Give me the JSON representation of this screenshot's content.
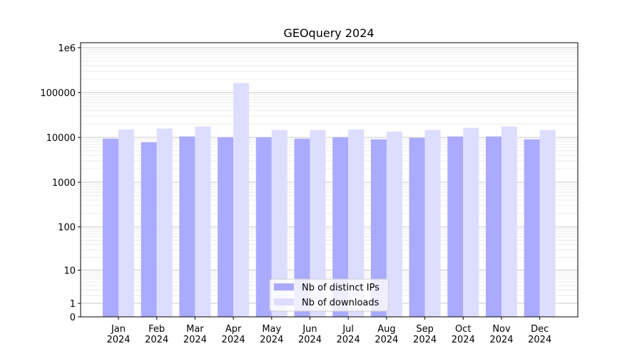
{
  "chart_data": {
    "type": "bar",
    "title": "GEOquery 2024",
    "xlabel": "",
    "ylabel": "",
    "yscale": "log10(1+y)",
    "ylim": [
      0,
      1200000
    ],
    "yticks": [
      0,
      1,
      10,
      100,
      1000,
      10000,
      100000,
      1000000
    ],
    "ytick_labels": [
      "0",
      "1",
      "10",
      "100",
      "1000",
      "10000",
      "100000",
      "1e6"
    ],
    "categories": [
      "Jan\n2024",
      "Feb\n2024",
      "Mar\n2024",
      "Apr\n2024",
      "May\n2024",
      "Jun\n2024",
      "Jul\n2024",
      "Aug\n2024",
      "Sep\n2024",
      "Oct\n2024",
      "Nov\n2024",
      "Dec\n2024"
    ],
    "series": [
      {
        "name": "Nb of distinct IPs",
        "color": "#aaaaff",
        "values": [
          9400,
          7800,
          10500,
          10100,
          10100,
          9400,
          10100,
          9060,
          9760,
          10500,
          10500,
          9060
        ]
      },
      {
        "name": "Nb of downloads",
        "color": "#ddddff",
        "values": [
          15100,
          15700,
          17500,
          162600,
          14600,
          14600,
          15100,
          13500,
          14600,
          16300,
          17500,
          14600
        ]
      }
    ],
    "grid": true,
    "legend": "bottom-center"
  }
}
